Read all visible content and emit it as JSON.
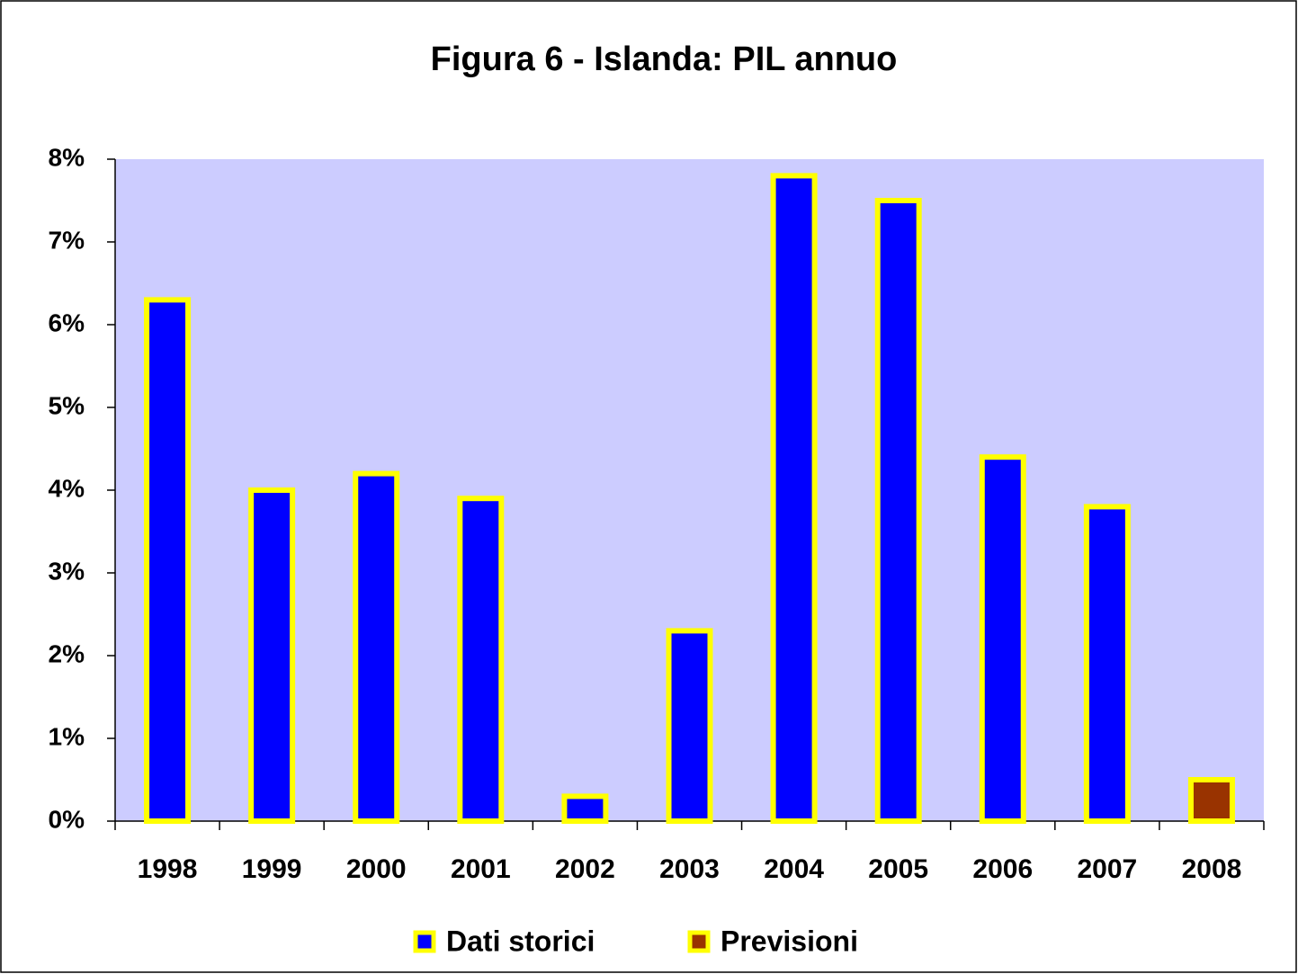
{
  "chart_data": {
    "type": "bar",
    "title": "Figura 6 - Islanda: PIL annuo",
    "categories": [
      "1998",
      "1999",
      "2000",
      "2001",
      "2002",
      "2003",
      "2004",
      "2005",
      "2006",
      "2007",
      "2008"
    ],
    "series": [
      {
        "name": "Dati storici",
        "color": "#0000ff",
        "values": [
          6.3,
          4.0,
          4.2,
          3.9,
          0.3,
          2.3,
          7.8,
          7.5,
          4.4,
          3.8,
          null
        ]
      },
      {
        "name": "Previsioni",
        "color": "#993300",
        "values": [
          null,
          null,
          null,
          null,
          null,
          null,
          null,
          null,
          null,
          null,
          0.5
        ]
      }
    ],
    "edgecolor": "#ffff00",
    "plot_background": "#ccccff",
    "ylim": [
      0,
      8
    ],
    "yticks": [
      {
        "value": 0,
        "label": "0%"
      },
      {
        "value": 1,
        "label": "1%"
      },
      {
        "value": 2,
        "label": "2%"
      },
      {
        "value": 3,
        "label": "3%"
      },
      {
        "value": 4,
        "label": "4%"
      },
      {
        "value": 5,
        "label": "5%"
      },
      {
        "value": 6,
        "label": "6%"
      },
      {
        "value": 7,
        "label": "7%"
      },
      {
        "value": 8,
        "label": "8%"
      }
    ],
    "legend": "bottom"
  }
}
